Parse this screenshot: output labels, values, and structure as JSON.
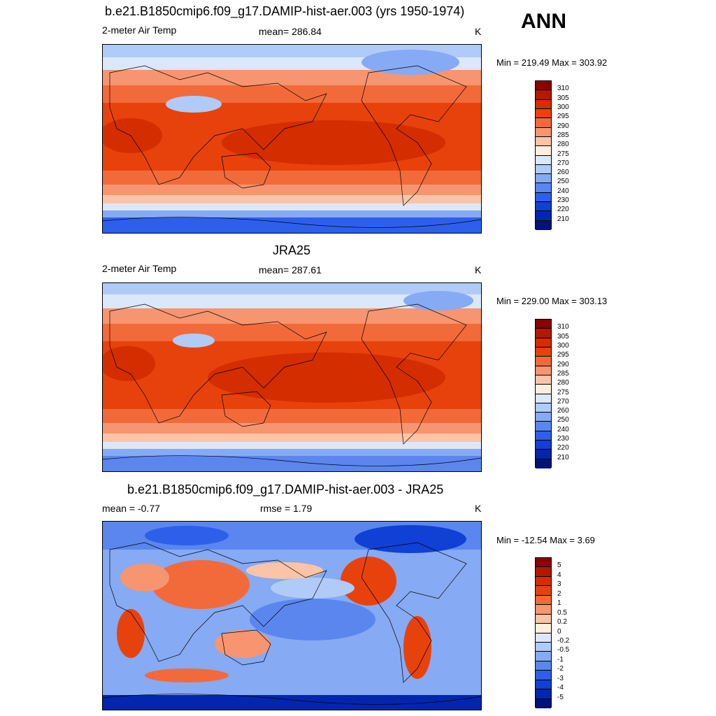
{
  "header": {
    "title": "b.e21.B1850cmip6.f09_g17.DAMIP-hist-aer.003 (yrs 1950-1974)",
    "season": "ANN"
  },
  "panels": [
    {
      "title": "",
      "left_label": "2-meter Air Temp",
      "center_label": "mean= 286.84",
      "units": "K",
      "minmax": "Min = 219.49 Max = 303.92"
    },
    {
      "title": "JRA25",
      "left_label": "2-meter Air Temp",
      "center_label": "mean= 287.61",
      "units": "K",
      "minmax": "Min = 229.00 Max = 303.13"
    },
    {
      "title": "b.e21.B1850cmip6.f09_g17.DAMIP-hist-aer.003 - JRA25",
      "left_label": "mean =  -0.77",
      "center_label": "rmse =   1.79",
      "units": "K",
      "minmax": "Min = -12.54 Max =   3.69"
    }
  ],
  "colorbar_abs": {
    "labels": [
      "310",
      "305",
      "300",
      "295",
      "290",
      "285",
      "280",
      "275",
      "270",
      "260",
      "250",
      "240",
      "230",
      "220",
      "210"
    ],
    "colors": [
      "#8b0000",
      "#b31800",
      "#d42d00",
      "#e8420c",
      "#f26a3a",
      "#f79570",
      "#fcc4a6",
      "#fdeede",
      "#dbe7fb",
      "#b0cbf8",
      "#86aaf3",
      "#5a86ee",
      "#2e5feb",
      "#1040d6",
      "#0425ad",
      "#00137a"
    ]
  },
  "colorbar_diff": {
    "labels": [
      "5",
      "4",
      "3",
      "2",
      "1",
      "0.5",
      "0.2",
      "0",
      "-0.2",
      "-0.5",
      "-1",
      "-2",
      "-3",
      "-4",
      "-5"
    ],
    "colors": [
      "#8b0000",
      "#b31800",
      "#d42d00",
      "#e8420c",
      "#f26a3a",
      "#f79570",
      "#fcc4a6",
      "#fdeede",
      "#dbe7fb",
      "#b0cbf8",
      "#86aaf3",
      "#5a86ee",
      "#2e5feb",
      "#1040d6",
      "#0425ad",
      "#00137a"
    ]
  }
}
